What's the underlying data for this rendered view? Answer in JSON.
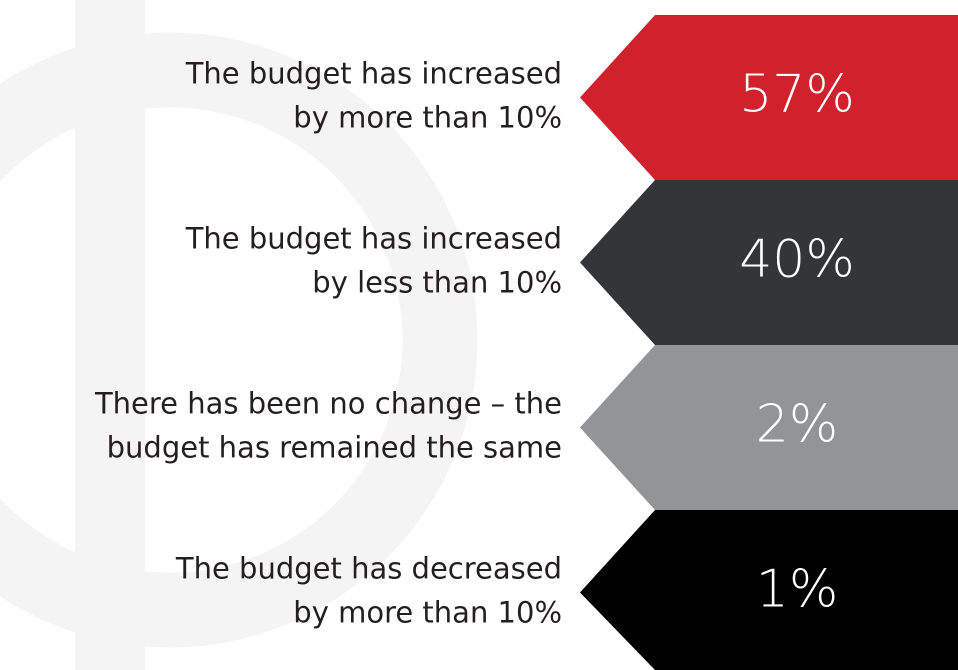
{
  "items": [
    {
      "lines": [
        "The budget has increased",
        "by more than 10%"
      ],
      "value": "57%",
      "color": "#d0212d"
    },
    {
      "lines": [
        "The budget has increased",
        "by less than 10%"
      ],
      "value": "40%",
      "color": "#333639"
    },
    {
      "lines": [
        "There has been no change – the",
        "budget has remained the same"
      ],
      "value": "2%",
      "color": "#929495"
    },
    {
      "lines": [
        "The budget has decreased",
        "by more than 10%"
      ],
      "value": "1%",
      "color": "#000000"
    }
  ]
}
